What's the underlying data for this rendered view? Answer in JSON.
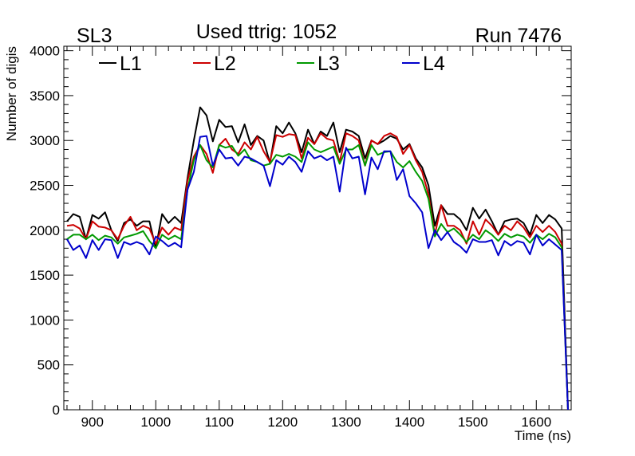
{
  "chart_data": {
    "type": "line",
    "title": "Used ttrig: 1052",
    "label_left": "SL3",
    "label_right": "Run 7476",
    "xlabel": "Time (ns)",
    "ylabel": "Number of digis",
    "xlim": [
      855,
      1655
    ],
    "ylim": [
      0,
      4050
    ],
    "xticks": [
      900,
      1000,
      1100,
      1200,
      1300,
      1400,
      1500,
      1600
    ],
    "yticks": [
      0,
      500,
      1000,
      1500,
      2000,
      2500,
      3000,
      3500,
      4000
    ],
    "x": [
      860,
      870,
      880,
      890,
      900,
      910,
      920,
      930,
      940,
      950,
      960,
      970,
      980,
      990,
      1000,
      1010,
      1020,
      1030,
      1040,
      1050,
      1060,
      1070,
      1080,
      1090,
      1100,
      1110,
      1120,
      1130,
      1140,
      1150,
      1160,
      1170,
      1180,
      1190,
      1200,
      1210,
      1220,
      1230,
      1240,
      1250,
      1260,
      1270,
      1280,
      1290,
      1300,
      1310,
      1320,
      1330,
      1340,
      1350,
      1360,
      1370,
      1380,
      1390,
      1400,
      1410,
      1420,
      1430,
      1440,
      1450,
      1460,
      1470,
      1480,
      1490,
      1500,
      1510,
      1520,
      1530,
      1540,
      1550,
      1560,
      1570,
      1580,
      1590,
      1600,
      1610,
      1620,
      1630,
      1640,
      1650
    ],
    "series": [
      {
        "name": "L1",
        "color": "#000000",
        "values": [
          2100,
          2180,
          2150,
          1900,
          2170,
          2130,
          2200,
          2000,
          1880,
          2080,
          2120,
          2050,
          2100,
          2100,
          1800,
          2180,
          2080,
          2150,
          2080,
          2580,
          3000,
          3370,
          3280,
          2990,
          3230,
          3150,
          3160,
          2980,
          3180,
          2950,
          3050,
          3000,
          2750,
          3160,
          3080,
          3200,
          3080,
          2870,
          3120,
          2960,
          3100,
          3050,
          3200,
          2870,
          3120,
          3100,
          3050,
          2800,
          3000,
          2960,
          3000,
          3050,
          3020,
          2900,
          2960,
          2800,
          2700,
          2500,
          2050,
          2280,
          2180,
          2180,
          2120,
          2000,
          2250,
          2130,
          2230,
          2100,
          1950,
          2100,
          2120,
          2130,
          2080,
          1950,
          2170,
          2080,
          2170,
          2120,
          2020,
          0
        ]
      },
      {
        "name": "L2",
        "color": "#cc0000",
        "values": [
          2050,
          2060,
          2020,
          1900,
          2100,
          2040,
          2030,
          2000,
          1900,
          2050,
          2150,
          2000,
          2050,
          2020,
          1850,
          2030,
          1950,
          2030,
          2000,
          2550,
          2820,
          2950,
          2850,
          2640,
          2950,
          3020,
          2900,
          2850,
          2980,
          2900,
          3040,
          2880,
          2760,
          3060,
          3040,
          3070,
          3060,
          2800,
          3030,
          2960,
          3080,
          3020,
          3000,
          2760,
          3080,
          3050,
          3000,
          2720,
          3000,
          2960,
          3050,
          3080,
          3040,
          2850,
          2950,
          2780,
          2650,
          2400,
          1950,
          2280,
          2050,
          2050,
          2000,
          1850,
          2100,
          1950,
          2120,
          2050,
          1950,
          2050,
          2000,
          2100,
          2030,
          1920,
          2050,
          1980,
          2050,
          1980,
          1850,
          0
        ]
      },
      {
        "name": "L3",
        "color": "#009900",
        "values": [
          1900,
          1950,
          1950,
          1900,
          1950,
          1890,
          1940,
          1920,
          1850,
          1920,
          1940,
          1960,
          1990,
          1880,
          1800,
          1950,
          1900,
          1940,
          1900,
          2450,
          2780,
          2950,
          2780,
          2700,
          2950,
          2920,
          2940,
          2830,
          2900,
          2780,
          2760,
          2720,
          2740,
          2840,
          2820,
          2850,
          2820,
          2760,
          2980,
          2900,
          2870,
          2900,
          2930,
          2740,
          2900,
          2900,
          2950,
          2720,
          2950,
          2840,
          2870,
          2880,
          2760,
          2700,
          2770,
          2650,
          2550,
          2350,
          1930,
          2070,
          1980,
          2020,
          1950,
          1870,
          1950,
          1900,
          2000,
          1950,
          1880,
          1960,
          1920,
          1950,
          1930,
          1860,
          1950,
          1900,
          1960,
          1920,
          1810,
          0
        ]
      },
      {
        "name": "L4",
        "color": "#0000cc",
        "values": [
          1900,
          1780,
          1830,
          1690,
          1890,
          1780,
          1900,
          1890,
          1690,
          1870,
          1840,
          1870,
          1840,
          1730,
          1930,
          1880,
          1820,
          1860,
          1810,
          2450,
          2650,
          3040,
          3050,
          2720,
          2900,
          2800,
          2810,
          2720,
          2820,
          2800,
          2760,
          2720,
          2490,
          2780,
          2730,
          2820,
          2760,
          2650,
          2880,
          2800,
          2830,
          2780,
          2820,
          2430,
          2920,
          2800,
          2820,
          2400,
          2810,
          2680,
          2880,
          2880,
          2560,
          2680,
          2380,
          2300,
          2200,
          1800,
          2000,
          1890,
          1980,
          1870,
          1820,
          1750,
          1900,
          1870,
          1870,
          1890,
          1720,
          1880,
          1830,
          1880,
          1860,
          1730,
          1950,
          1830,
          1900,
          1840,
          1780,
          0
        ]
      }
    ]
  }
}
